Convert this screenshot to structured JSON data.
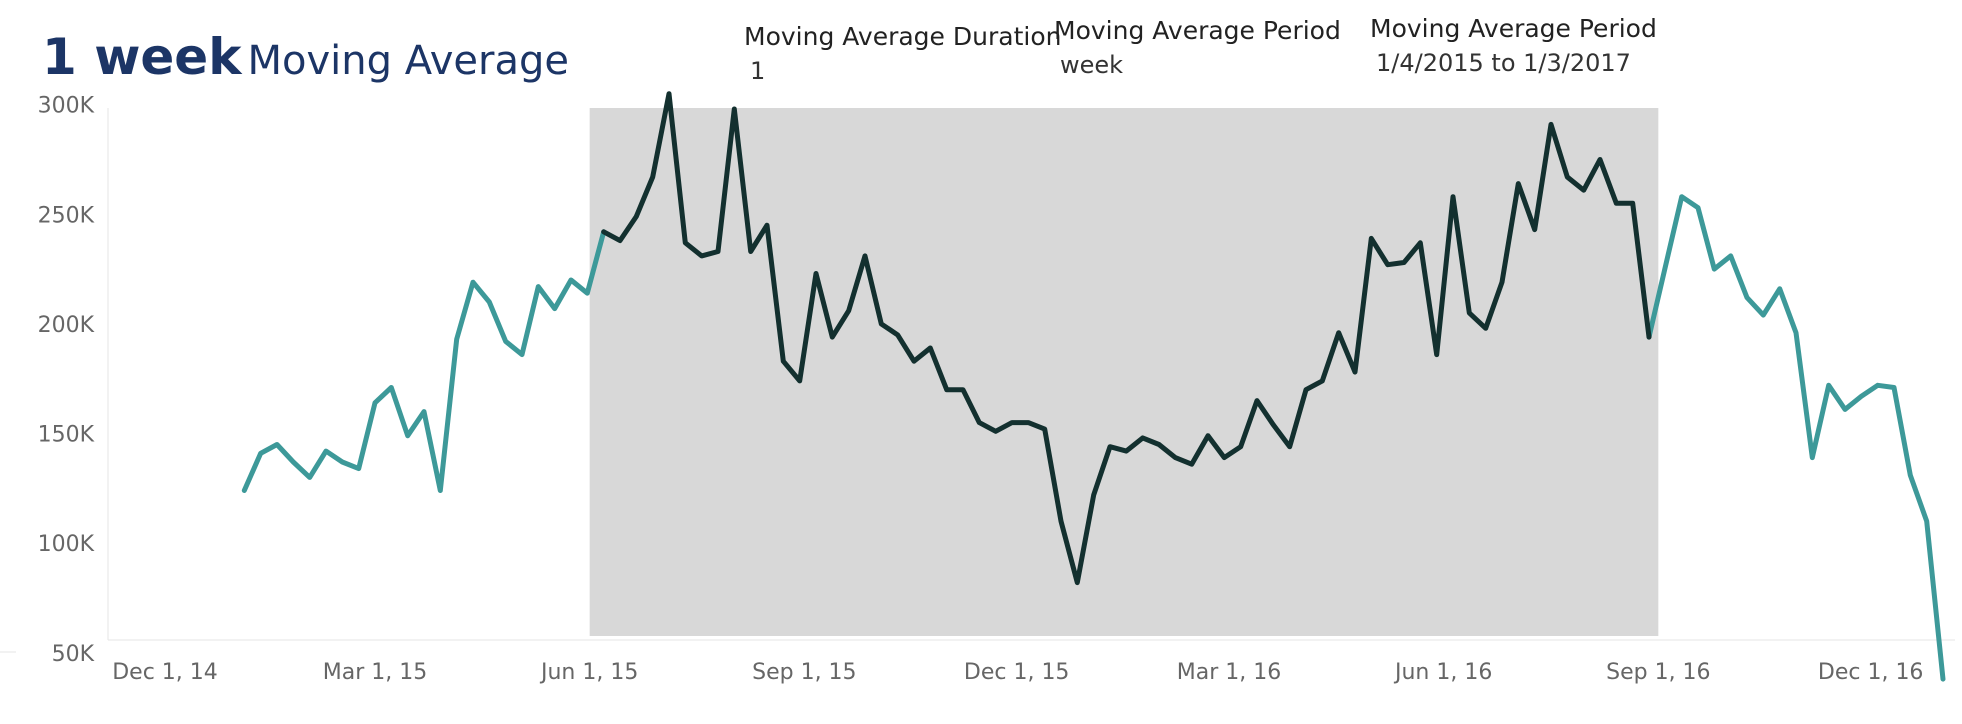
{
  "header": {
    "title_bold": "1 week",
    "title_rest": "Moving Average"
  },
  "params": [
    {
      "label": "Moving Average Duration",
      "value": "1"
    },
    {
      "label": "Moving Average Period",
      "value": "week"
    },
    {
      "label": "Moving Average Period",
      "value": "1/4/2015 to 1/3/2017"
    }
  ],
  "colors": {
    "outside_line": "#3d9999",
    "inside_line": "#13302f",
    "highlight_band": "#d8d8d8",
    "title": "#1c3566"
  },
  "chart_data": {
    "type": "line",
    "x_axis": "date (weekly)",
    "x_ticks": [
      "Dec 1, 14",
      "Mar 1, 15",
      "Jun 1, 15",
      "Sep 1, 15",
      "Dec 1, 15",
      "Mar 1, 16",
      "Jun 1, 16",
      "Sep 1, 16",
      "Dec 1, 16"
    ],
    "y_ticks": [
      "50K",
      "100K",
      "150K",
      "200K",
      "250K",
      "300K"
    ],
    "ylim": [
      20000,
      315000
    ],
    "highlight_period": [
      "2015-06-01",
      "2016-09-01"
    ],
    "grid": false,
    "series": [
      {
        "values": [
          [
            "2015-01-04",
            124000
          ],
          [
            "2015-01-11",
            141000
          ],
          [
            "2015-01-18",
            145000
          ],
          [
            "2015-01-25",
            137000
          ],
          [
            "2015-02-01",
            130000
          ],
          [
            "2015-02-08",
            142000
          ],
          [
            "2015-02-15",
            137000
          ],
          [
            "2015-02-22",
            134000
          ],
          [
            "2015-03-01",
            164000
          ],
          [
            "2015-03-08",
            171000
          ],
          [
            "2015-03-15",
            149000
          ],
          [
            "2015-03-22",
            160000
          ],
          [
            "2015-03-29",
            124000
          ],
          [
            "2015-04-05",
            193000
          ],
          [
            "2015-04-12",
            219000
          ],
          [
            "2015-04-19",
            210000
          ],
          [
            "2015-04-26",
            192000
          ],
          [
            "2015-05-03",
            186000
          ],
          [
            "2015-05-10",
            217000
          ],
          [
            "2015-05-17",
            207000
          ],
          [
            "2015-05-24",
            220000
          ],
          [
            "2015-05-31",
            214000
          ],
          [
            "2015-06-07",
            242000
          ],
          [
            "2015-06-14",
            238000
          ],
          [
            "2015-06-21",
            249000
          ],
          [
            "2015-06-28",
            267000
          ],
          [
            "2015-07-05",
            305000
          ],
          [
            "2015-07-12",
            237000
          ],
          [
            "2015-07-19",
            231000
          ],
          [
            "2015-07-26",
            233000
          ],
          [
            "2015-08-02",
            298000
          ],
          [
            "2015-08-09",
            233000
          ],
          [
            "2015-08-16",
            245000
          ],
          [
            "2015-08-23",
            183000
          ],
          [
            "2015-08-30",
            174000
          ],
          [
            "2015-09-06",
            223000
          ],
          [
            "2015-09-13",
            194000
          ],
          [
            "2015-09-20",
            206000
          ],
          [
            "2015-09-27",
            231000
          ],
          [
            "2015-10-04",
            200000
          ],
          [
            "2015-10-11",
            195000
          ],
          [
            "2015-10-18",
            183000
          ],
          [
            "2015-10-25",
            189000
          ],
          [
            "2015-11-01",
            170000
          ],
          [
            "2015-11-08",
            170000
          ],
          [
            "2015-11-15",
            155000
          ],
          [
            "2015-11-22",
            151000
          ],
          [
            "2015-11-29",
            155000
          ],
          [
            "2015-12-06",
            155000
          ],
          [
            "2015-12-13",
            152000
          ],
          [
            "2015-12-20",
            110000
          ],
          [
            "2015-12-27",
            82000
          ],
          [
            "2016-01-03",
            122000
          ],
          [
            "2016-01-10",
            144000
          ],
          [
            "2016-01-17",
            142000
          ],
          [
            "2016-01-24",
            148000
          ],
          [
            "2016-01-31",
            145000
          ],
          [
            "2016-02-07",
            139000
          ],
          [
            "2016-02-14",
            136000
          ],
          [
            "2016-02-21",
            149000
          ],
          [
            "2016-02-28",
            139000
          ],
          [
            "2016-03-06",
            144000
          ],
          [
            "2016-03-13",
            165000
          ],
          [
            "2016-03-20",
            154000
          ],
          [
            "2016-03-27",
            144000
          ],
          [
            "2016-04-03",
            170000
          ],
          [
            "2016-04-10",
            174000
          ],
          [
            "2016-04-17",
            196000
          ],
          [
            "2016-04-24",
            178000
          ],
          [
            "2016-05-01",
            239000
          ],
          [
            "2016-05-08",
            227000
          ],
          [
            "2016-05-15",
            228000
          ],
          [
            "2016-05-22",
            237000
          ],
          [
            "2016-05-29",
            186000
          ],
          [
            "2016-06-05",
            258000
          ],
          [
            "2016-06-12",
            205000
          ],
          [
            "2016-06-19",
            198000
          ],
          [
            "2016-06-26",
            219000
          ],
          [
            "2016-07-03",
            264000
          ],
          [
            "2016-07-10",
            243000
          ],
          [
            "2016-07-17",
            291000
          ],
          [
            "2016-07-24",
            267000
          ],
          [
            "2016-07-31",
            261000
          ],
          [
            "2016-08-07",
            275000
          ],
          [
            "2016-08-14",
            255000
          ],
          [
            "2016-08-21",
            255000
          ],
          [
            "2016-08-28",
            194000
          ],
          [
            "2016-09-04",
            226000
          ],
          [
            "2016-09-11",
            258000
          ],
          [
            "2016-09-18",
            253000
          ],
          [
            "2016-09-25",
            225000
          ],
          [
            "2016-10-02",
            231000
          ],
          [
            "2016-10-09",
            212000
          ],
          [
            "2016-10-16",
            204000
          ],
          [
            "2016-10-23",
            216000
          ],
          [
            "2016-10-30",
            196000
          ],
          [
            "2016-11-06",
            139000
          ],
          [
            "2016-11-13",
            172000
          ],
          [
            "2016-11-20",
            161000
          ],
          [
            "2016-11-27",
            167000
          ],
          [
            "2016-12-04",
            172000
          ],
          [
            "2016-12-11",
            171000
          ],
          [
            "2016-12-18",
            131000
          ],
          [
            "2016-12-25",
            110000
          ],
          [
            "2017-01-01",
            38000
          ]
        ]
      }
    ]
  }
}
